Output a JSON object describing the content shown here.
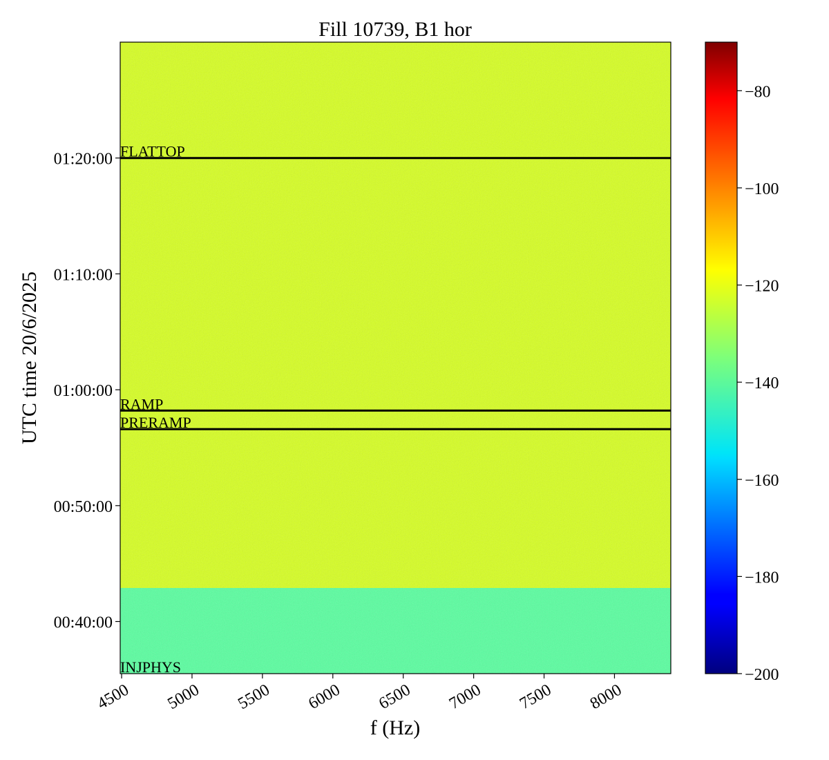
{
  "chart_data": {
    "type": "heatmap",
    "title": "Fill 10739, B1 hor",
    "xlabel": "f (Hz)",
    "ylabel": "UTC time 20/6/2025",
    "xlim": [
      4490,
      8400
    ],
    "x_ticks": [
      4500,
      5000,
      5500,
      6000,
      6500,
      7000,
      7500,
      8000
    ],
    "x_tick_labels": [
      "4500",
      "5000",
      "5500",
      "6000",
      "6500",
      "7000",
      "7500",
      "8000"
    ],
    "ylim_minutes_after_midnight": [
      35.5,
      90
    ],
    "y_ticks": [
      40,
      50,
      60,
      70,
      80
    ],
    "y_tick_labels": [
      "00:40:00",
      "00:50:00",
      "01:00:00",
      "01:10:00",
      "01:20:00"
    ],
    "colorbar": {
      "colormap": "jet",
      "range": [
        -200,
        -70
      ],
      "ticks": [
        -200,
        -180,
        -160,
        -140,
        -120,
        -100,
        -80
      ],
      "tick_labels": [
        "−200",
        "−180",
        "−160",
        "−140",
        "−120",
        "−100",
        "−80"
      ]
    },
    "typical_level_before_injection": -140,
    "typical_level_after_injection": -120,
    "markers": [
      {
        "label": "INJPHYS",
        "minute": 35.5
      },
      {
        "label": "PRERAMP",
        "minute": 56.6
      },
      {
        "label": "RAMP",
        "minute": 58.2
      },
      {
        "label": "FLATTOP",
        "minute": 80.0
      }
    ],
    "grid": false
  }
}
